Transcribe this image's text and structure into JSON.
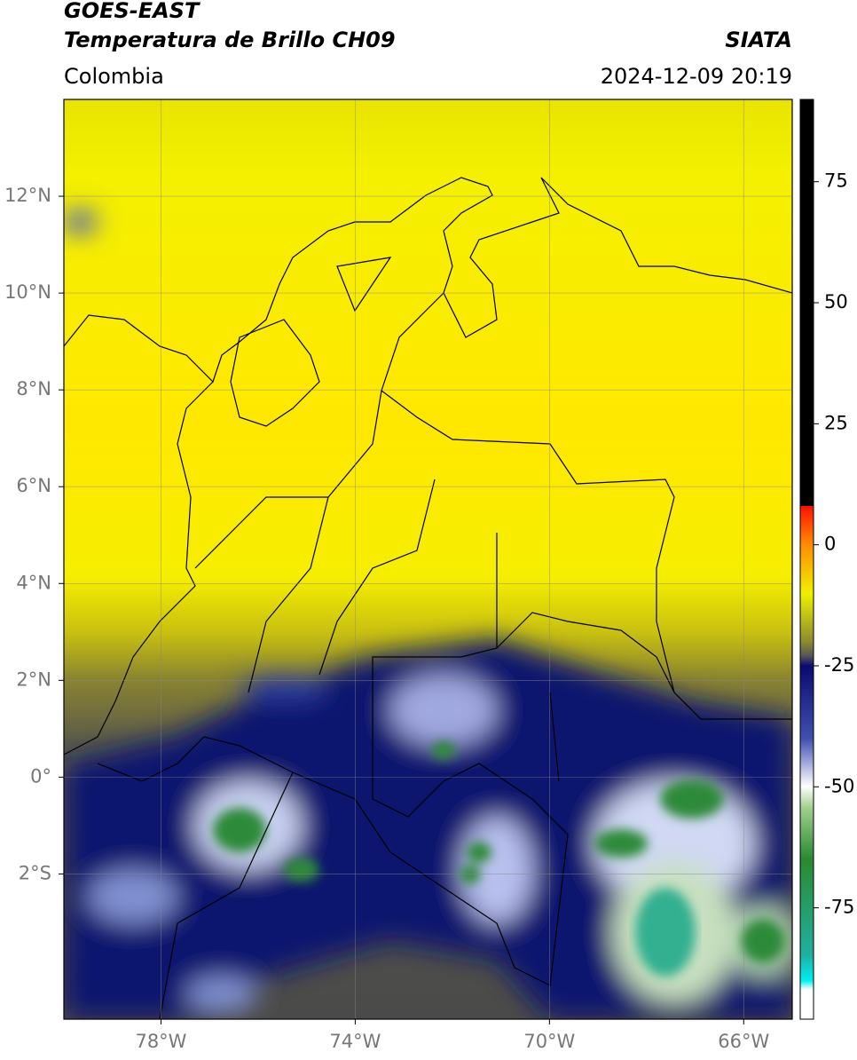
{
  "header": {
    "title": "GOES-EAST",
    "subtitle": "Temperatura de Brillo CH09",
    "source": "SIATA",
    "region": "Colombia",
    "datetime": "2024-12-09 20:19"
  },
  "map": {
    "xlim": [
      -80,
      -65
    ],
    "ylim": [
      -5,
      14
    ],
    "xticks": [
      {
        "value": -78,
        "label": "78°W"
      },
      {
        "value": -74,
        "label": "74°W"
      },
      {
        "value": -70,
        "label": "70°W"
      },
      {
        "value": -66,
        "label": "66°W"
      }
    ],
    "yticks": [
      {
        "value": 12,
        "label": "12°N"
      },
      {
        "value": 10,
        "label": "10°N"
      },
      {
        "value": 8,
        "label": "8°N"
      },
      {
        "value": 6,
        "label": "6°N"
      },
      {
        "value": 4,
        "label": "4°N"
      },
      {
        "value": 2,
        "label": "2°N"
      },
      {
        "value": 0,
        "label": "0°"
      },
      {
        "value": -2,
        "label": "2°S"
      }
    ],
    "grid": true
  },
  "colorbar": {
    "lim": [
      -98,
      92
    ],
    "ticks": [
      75,
      50,
      25,
      0,
      -25,
      -50,
      -75
    ]
  }
}
